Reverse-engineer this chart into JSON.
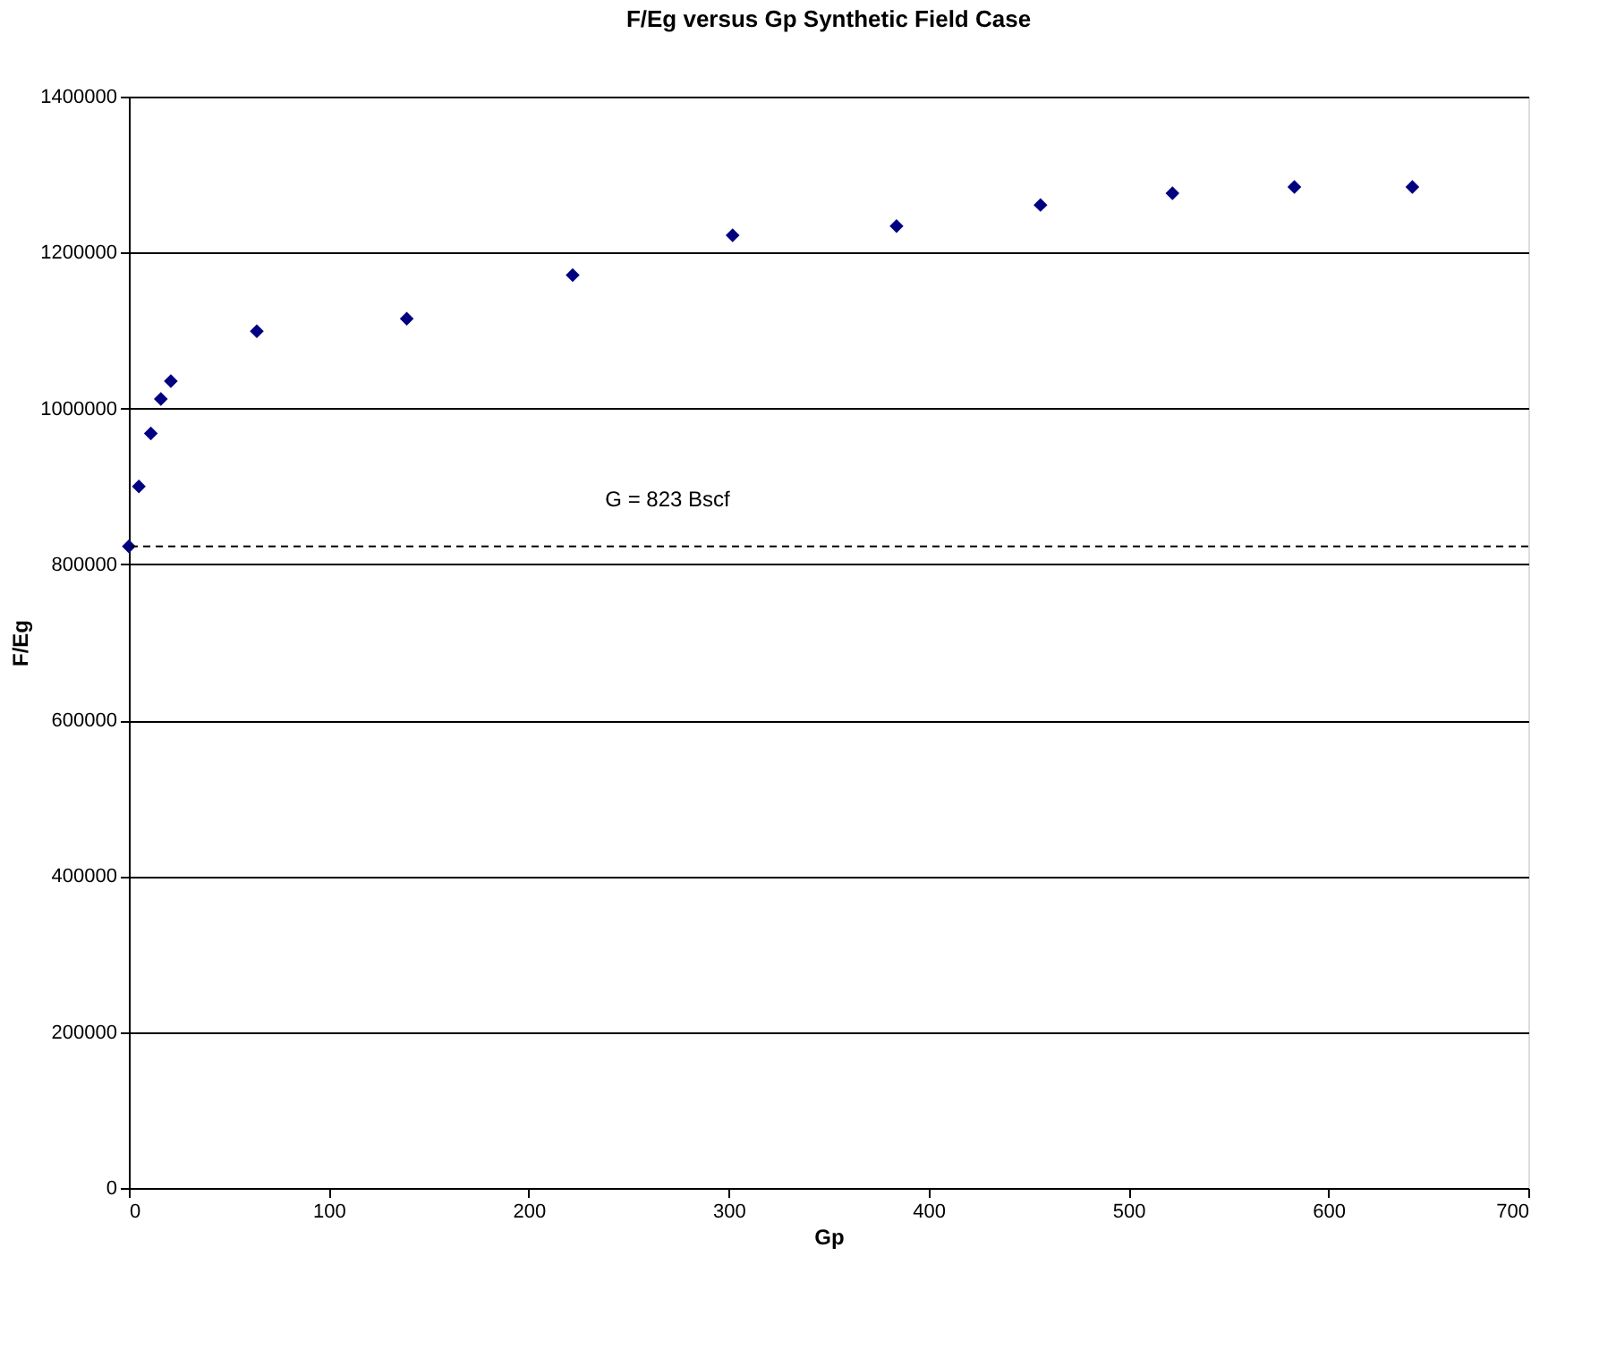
{
  "chart_data": {
    "type": "scatter",
    "title": "F/Eg versus Gp Synthetic Field Case",
    "xlabel": "Gp",
    "ylabel": "F/Eg",
    "x": [
      0,
      5,
      11,
      16,
      21,
      64,
      139,
      222,
      302,
      384,
      456,
      522,
      583,
      642
    ],
    "series": [
      {
        "color": "#000080",
        "values": [
          823000,
          900000,
          968000,
          1012000,
          1035000,
          1099000,
          1115000,
          1171000,
          1222000,
          1234000,
          1261000,
          1276000,
          1284000,
          1284000
        ]
      }
    ],
    "xlim": [
      0,
      700
    ],
    "xticks": [
      0,
      100,
      200,
      300,
      400,
      500,
      600,
      700
    ],
    "ylim": [
      0,
      1400000
    ],
    "yticks": [
      0,
      200000,
      400000,
      600000,
      800000,
      1000000,
      1200000,
      1400000
    ],
    "ref_lines": [
      {
        "axis": "y",
        "value": 823000,
        "line_style": "dashed",
        "color": "#000000"
      }
    ],
    "annotations": [
      "G = 823 Bscf"
    ],
    "grid": "y",
    "marker": "diamond"
  }
}
